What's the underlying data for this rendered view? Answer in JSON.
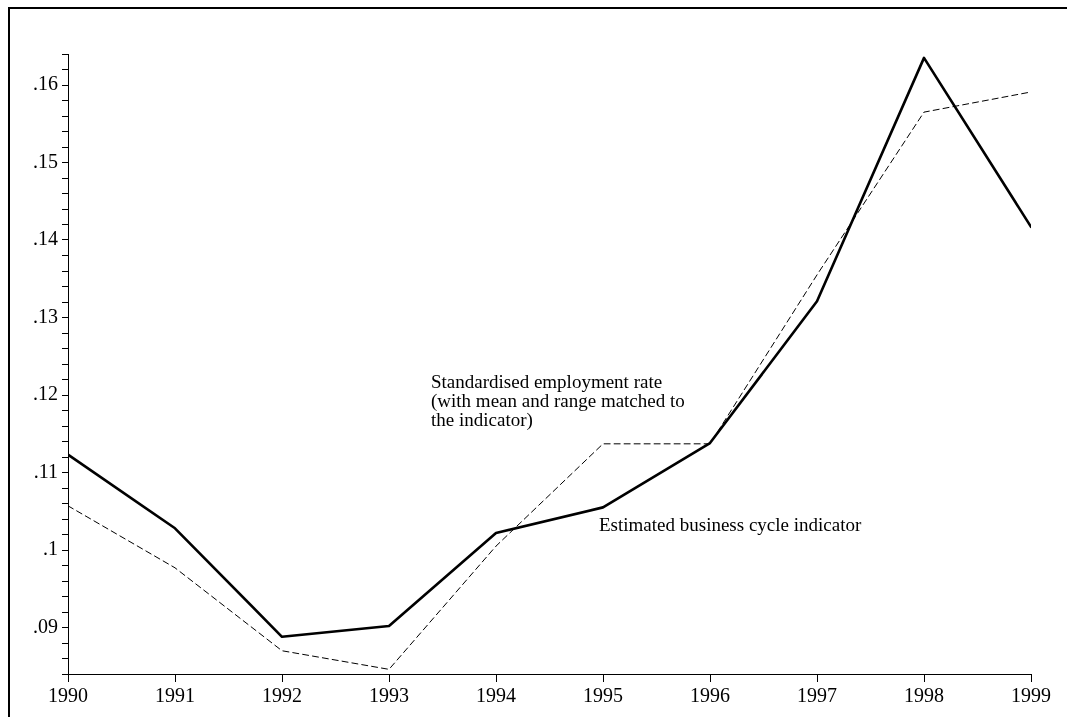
{
  "chart_data": {
    "type": "line",
    "x": [
      1990,
      1991,
      1992,
      1993,
      1994,
      1995,
      1996,
      1997,
      1998,
      1999
    ],
    "series": [
      {
        "name": "Standardised employment rate (with mean and range matched to the indicator)",
        "color": "#000000",
        "line_style": "dashed",
        "values": [
          0.1057,
          0.0977,
          0.087,
          0.0846,
          0.1005,
          0.1137,
          0.1137,
          0.1355,
          0.1565,
          0.1591
        ]
      },
      {
        "name": "Estimated business cycle indicator",
        "color": "#000000",
        "line_style": "solid",
        "values": [
          0.1123,
          0.1028,
          0.0888,
          0.0902,
          0.1022,
          0.1055,
          0.1138,
          0.1321,
          0.1635,
          0.1417
        ]
      }
    ],
    "xlim": [
      1990,
      1999
    ],
    "xticks": [
      1990,
      1991,
      1992,
      1993,
      1994,
      1995,
      1996,
      1997,
      1998,
      1999
    ],
    "ylim": [
      0.084,
      0.164
    ],
    "yticks": [
      {
        "value": 0.084,
        "label": null
      },
      {
        "value": 0.086,
        "label": null
      },
      {
        "value": 0.088,
        "label": null
      },
      {
        "value": 0.09,
        "label": ".09"
      },
      {
        "value": 0.092,
        "label": null
      },
      {
        "value": 0.094,
        "label": null
      },
      {
        "value": 0.096,
        "label": null
      },
      {
        "value": 0.098,
        "label": null
      },
      {
        "value": 0.1,
        "label": ".1"
      },
      {
        "value": 0.102,
        "label": null
      },
      {
        "value": 0.104,
        "label": null
      },
      {
        "value": 0.106,
        "label": null
      },
      {
        "value": 0.108,
        "label": null
      },
      {
        "value": 0.11,
        "label": ".11"
      },
      {
        "value": 0.112,
        "label": null
      },
      {
        "value": 0.114,
        "label": null
      },
      {
        "value": 0.116,
        "label": null
      },
      {
        "value": 0.118,
        "label": null
      },
      {
        "value": 0.12,
        "label": ".12"
      },
      {
        "value": 0.122,
        "label": null
      },
      {
        "value": 0.124,
        "label": null
      },
      {
        "value": 0.126,
        "label": null
      },
      {
        "value": 0.128,
        "label": null
      },
      {
        "value": 0.13,
        "label": ".13"
      },
      {
        "value": 0.132,
        "label": null
      },
      {
        "value": 0.134,
        "label": null
      },
      {
        "value": 0.136,
        "label": null
      },
      {
        "value": 0.138,
        "label": null
      },
      {
        "value": 0.14,
        "label": ".14"
      },
      {
        "value": 0.142,
        "label": null
      },
      {
        "value": 0.144,
        "label": null
      },
      {
        "value": 0.146,
        "label": null
      },
      {
        "value": 0.148,
        "label": null
      },
      {
        "value": 0.15,
        "label": ".15"
      },
      {
        "value": 0.152,
        "label": null
      },
      {
        "value": 0.154,
        "label": null
      },
      {
        "value": 0.156,
        "label": null
      },
      {
        "value": 0.158,
        "label": null
      },
      {
        "value": 0.16,
        "label": ".16"
      },
      {
        "value": 0.162,
        "label": null
      },
      {
        "value": 0.164,
        "label": null
      }
    ],
    "grid": false,
    "legend": false,
    "marker": "none"
  }
}
